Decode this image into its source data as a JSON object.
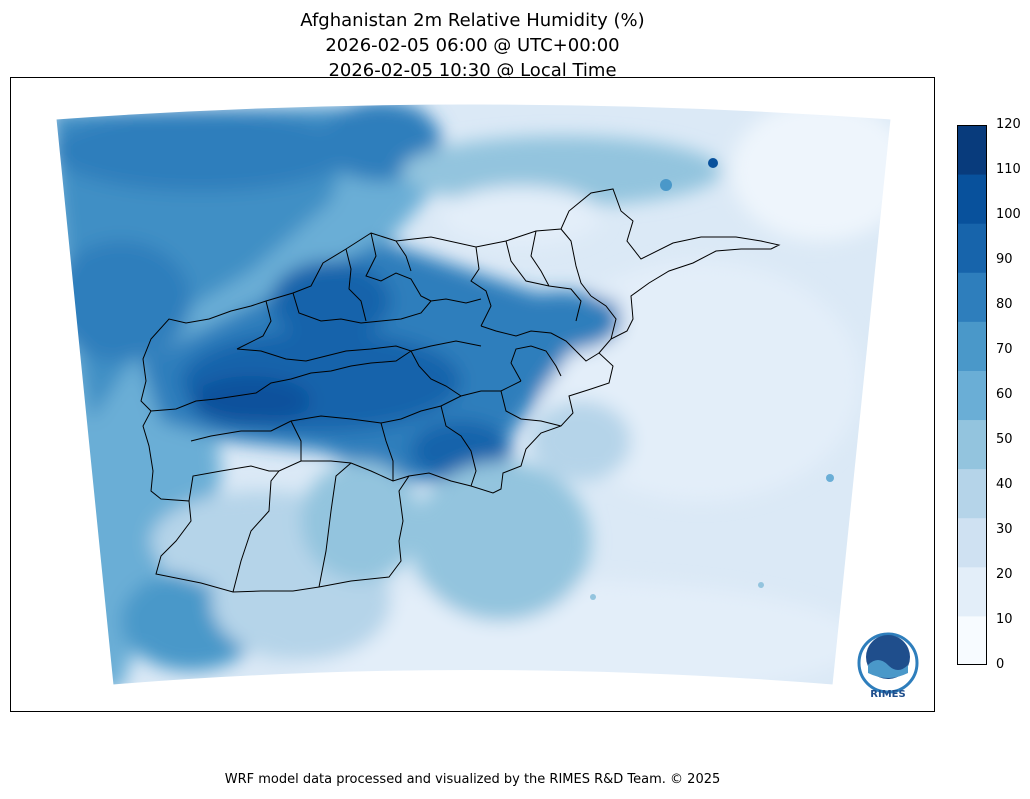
{
  "title": {
    "line1": "Afghanistan 2m Relative Humidity (%)",
    "line2": "2026-02-05 06:00 @ UTC+00:00",
    "line3": "2026-02-05 10:30 @ Local Time"
  },
  "colorbar": {
    "levels": [
      "0",
      "10",
      "20",
      "30",
      "40",
      "50",
      "60",
      "70",
      "80",
      "90",
      "100",
      "110",
      "120"
    ],
    "colors": [
      "#f7fbff",
      "#e3eef9",
      "#cfe1f2",
      "#b5d4e9",
      "#93c4de",
      "#6aaed6",
      "#4a98c9",
      "#2e7ebc",
      "#1764ab",
      "#08519c",
      "#083b7c"
    ]
  },
  "logo": {
    "text": "RIMES"
  },
  "footer": "WRF model data processed and visualized by the RIMES R&D Team. © 2025",
  "chart_data": {
    "type": "heatmap",
    "variable": "2m Relative Humidity (%)",
    "colorbar_range": [
      0,
      120
    ],
    "colorbar_levels": [
      0,
      10,
      20,
      30,
      40,
      50,
      60,
      70,
      80,
      90,
      100,
      110,
      120
    ]
  }
}
